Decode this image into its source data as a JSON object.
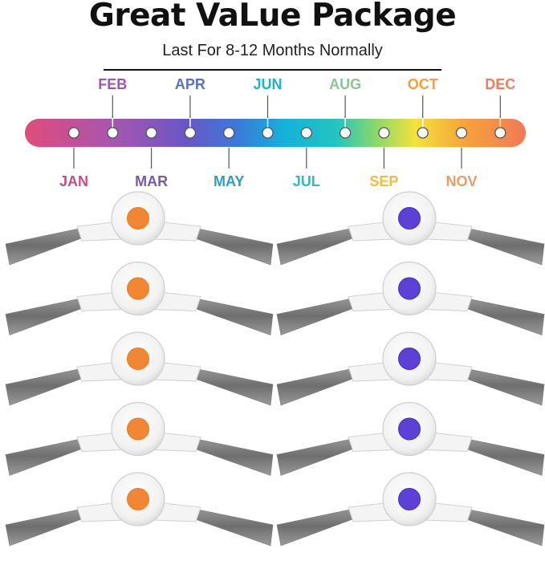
{
  "title": "Great VaLue Package",
  "subtitle": "Last For 8-12 Months Normally",
  "timeline": {
    "months": [
      {
        "label": "JAN",
        "color": "#c0508a"
      },
      {
        "label": "FEB",
        "color": "#9a5aa8"
      },
      {
        "label": "MAR",
        "color": "#7a5aae"
      },
      {
        "label": "APR",
        "color": "#5a73b8"
      },
      {
        "label": "MAY",
        "color": "#2aa0c2"
      },
      {
        "label": "JUN",
        "color": "#1eb3cc"
      },
      {
        "label": "JUL",
        "color": "#30b8bc"
      },
      {
        "label": "AUG",
        "color": "#8cc49a"
      },
      {
        "label": "SEP",
        "color": "#f2bd3a"
      },
      {
        "label": "OCT",
        "color": "#f2a23c"
      },
      {
        "label": "NOV",
        "color": "#ef9c63"
      },
      {
        "label": "DEC",
        "color": "#ee7f63"
      }
    ]
  },
  "brushes": {
    "left_hub_color": "#f07a1e",
    "right_hub_color": "#4b2bd0",
    "count_per_column": 5
  }
}
